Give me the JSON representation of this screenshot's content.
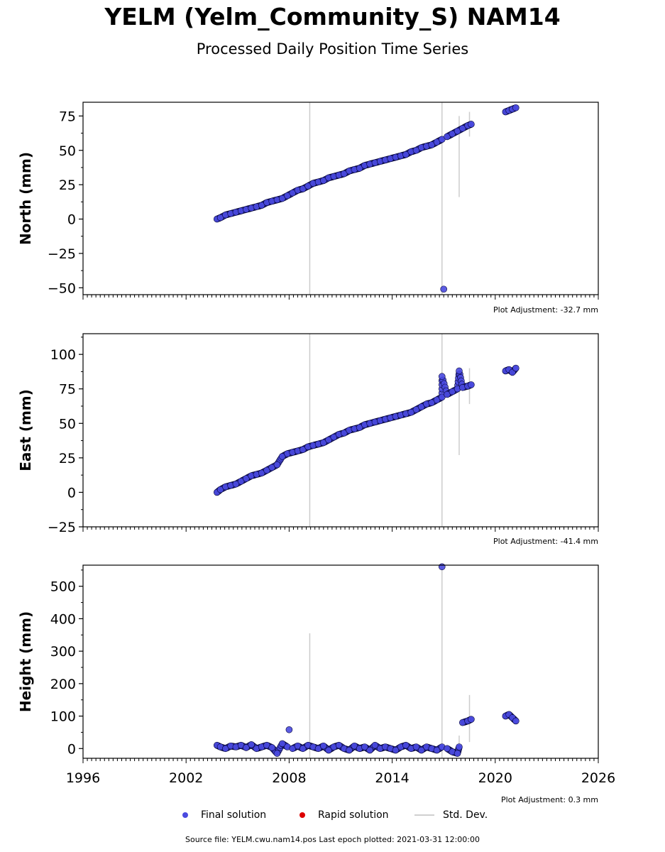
{
  "page": {
    "title": "YELM (Yelm_Community_S) NAM14",
    "subtitle": "Processed Daily Position Time Series",
    "footer": "Source file: YELM.cwu.nam14.pos  Last epoch plotted: 2021-03-31 12:00:00"
  },
  "legend": {
    "final_label": "Final solution",
    "rapid_label": "Rapid solution",
    "std_label": "Std. Dev."
  },
  "colors": {
    "final": "#4a4ae0",
    "final_edge": "#000033",
    "rapid": "#dd0000",
    "std": "#cccccc"
  },
  "chart_data": [
    {
      "type": "scatter",
      "ylabel": "North (mm)",
      "adjustment": "Plot Adjustment: -32.7 mm",
      "xlim": [
        1996,
        2026
      ],
      "ylim": [
        -55,
        85
      ],
      "yticks": [
        -50,
        -25,
        0,
        25,
        50,
        75
      ],
      "ytick_labels": [
        "−50",
        "−25",
        "0",
        "25",
        "50",
        "75"
      ],
      "x": [
        2003.8,
        2004.0,
        2004.3,
        2004.6,
        2004.9,
        2005.2,
        2005.5,
        2005.8,
        2006.1,
        2006.4,
        2006.7,
        2007.0,
        2007.3,
        2007.6,
        2007.9,
        2008.2,
        2008.5,
        2008.8,
        2009.1,
        2009.4,
        2009.7,
        2010.0,
        2010.3,
        2010.6,
        2010.9,
        2011.2,
        2011.5,
        2011.8,
        2012.1,
        2012.4,
        2012.7,
        2013.0,
        2013.3,
        2013.6,
        2013.9,
        2014.2,
        2014.5,
        2014.8,
        2015.1,
        2015.4,
        2015.7,
        2016.0,
        2016.3,
        2016.6,
        2016.9,
        2017.0,
        2017.2,
        2017.5,
        2017.8,
        2018.1,
        2018.4,
        2018.6,
        2020.6,
        2020.8,
        2021.0,
        2021.2
      ],
      "y": [
        0,
        1,
        3,
        4,
        5,
        6,
        7,
        8,
        9,
        10,
        12,
        13,
        14,
        15,
        17,
        19,
        21,
        22,
        24,
        26,
        27,
        28,
        30,
        31,
        32,
        33,
        35,
        36,
        37,
        39,
        40,
        41,
        42,
        43,
        44,
        45,
        46,
        47,
        49,
        50,
        52,
        53,
        54,
        56,
        58,
        -51,
        60,
        62,
        64,
        66,
        68,
        69,
        78,
        79,
        80,
        81
      ],
      "std_dev_spikes": [
        {
          "x": 2009.2,
          "low": -55,
          "high": 85
        },
        {
          "x": 2016.9,
          "low": -55,
          "high": 85
        },
        {
          "x": 2017.9,
          "low": 16,
          "high": 75
        },
        {
          "x": 2018.5,
          "low": 60,
          "high": 78
        }
      ]
    },
    {
      "type": "scatter",
      "ylabel": "East (mm)",
      "adjustment": "Plot Adjustment: -41.4 mm",
      "xlim": [
        1996,
        2026
      ],
      "ylim": [
        -25,
        115
      ],
      "yticks": [
        -25,
        0,
        25,
        50,
        75,
        100
      ],
      "ytick_labels": [
        "−25",
        "0",
        "25",
        "50",
        "75",
        "100"
      ],
      "x": [
        2003.8,
        2004.0,
        2004.3,
        2004.6,
        2004.9,
        2005.2,
        2005.5,
        2005.8,
        2006.1,
        2006.4,
        2006.7,
        2007.0,
        2007.3,
        2007.6,
        2007.9,
        2008.2,
        2008.5,
        2008.8,
        2009.1,
        2009.4,
        2009.7,
        2010.0,
        2010.3,
        2010.6,
        2010.9,
        2011.2,
        2011.5,
        2011.8,
        2012.1,
        2012.4,
        2012.7,
        2013.0,
        2013.3,
        2013.6,
        2013.9,
        2014.2,
        2014.5,
        2014.8,
        2015.1,
        2015.4,
        2015.7,
        2016.0,
        2016.3,
        2016.6,
        2016.9,
        2016.9,
        2017.2,
        2017.5,
        2017.8,
        2017.9,
        2018.1,
        2018.4,
        2018.6,
        2020.6,
        2020.8,
        2021.0,
        2021.2
      ],
      "y": [
        0,
        2,
        4,
        5,
        6,
        8,
        10,
        12,
        13,
        14,
        16,
        18,
        20,
        26,
        28,
        29,
        30,
        31,
        33,
        34,
        35,
        36,
        38,
        40,
        42,
        43,
        45,
        46,
        47,
        49,
        50,
        51,
        52,
        53,
        54,
        55,
        56,
        57,
        58,
        60,
        62,
        64,
        65,
        67,
        69,
        84,
        71,
        73,
        75,
        88,
        76,
        77,
        78,
        88,
        89,
        87,
        90
      ],
      "std_dev_spikes": [
        {
          "x": 2009.2,
          "low": -25,
          "high": 115
        },
        {
          "x": 2016.9,
          "low": -25,
          "high": 115
        },
        {
          "x": 2017.9,
          "low": 27,
          "high": 90
        },
        {
          "x": 2018.5,
          "low": 64,
          "high": 90
        }
      ]
    },
    {
      "type": "scatter",
      "ylabel": "Height (mm)",
      "adjustment": "Plot Adjustment: 0.3 mm",
      "xlim": [
        1996,
        2026
      ],
      "ylim": [
        -30,
        565
      ],
      "yticks": [
        0,
        100,
        200,
        300,
        400,
        500
      ],
      "ytick_labels": [
        "0",
        "100",
        "200",
        "300",
        "400",
        "500"
      ],
      "xticks": [
        1996,
        2002,
        2008,
        2014,
        2020,
        2026
      ],
      "xtick_labels": [
        "1996",
        "2002",
        "2008",
        "2014",
        "2020",
        "2026"
      ],
      "x": [
        2003.8,
        2004.0,
        2004.3,
        2004.6,
        2004.9,
        2005.2,
        2005.5,
        2005.8,
        2006.1,
        2006.4,
        2006.7,
        2007.0,
        2007.3,
        2007.6,
        2007.9,
        2008.0,
        2008.2,
        2008.5,
        2008.8,
        2009.1,
        2009.4,
        2009.7,
        2010.0,
        2010.3,
        2010.6,
        2010.9,
        2011.2,
        2011.5,
        2011.8,
        2012.1,
        2012.4,
        2012.7,
        2013.0,
        2013.3,
        2013.6,
        2013.9,
        2014.2,
        2014.5,
        2014.8,
        2015.1,
        2015.4,
        2015.7,
        2016.0,
        2016.3,
        2016.6,
        2016.9,
        2016.9,
        2017.2,
        2017.5,
        2017.8,
        2017.9,
        2018.1,
        2018.4,
        2018.6,
        2020.6,
        2020.8,
        2021.0,
        2021.2
      ],
      "y": [
        10,
        5,
        0,
        8,
        5,
        10,
        3,
        12,
        0,
        5,
        10,
        3,
        -15,
        15,
        5,
        58,
        0,
        8,
        0,
        10,
        5,
        0,
        8,
        -5,
        5,
        10,
        0,
        -5,
        8,
        0,
        5,
        -5,
        10,
        0,
        5,
        0,
        -5,
        5,
        10,
        0,
        5,
        -5,
        5,
        0,
        -5,
        5,
        560,
        0,
        -10,
        -15,
        5,
        80,
        85,
        90,
        100,
        105,
        95,
        85
      ],
      "std_dev_spikes": [
        {
          "x": 2009.2,
          "low": -30,
          "high": 355
        },
        {
          "x": 2016.9,
          "low": -30,
          "high": 565
        },
        {
          "x": 2017.9,
          "low": -20,
          "high": 40
        },
        {
          "x": 2018.5,
          "low": 20,
          "high": 165
        }
      ]
    }
  ]
}
